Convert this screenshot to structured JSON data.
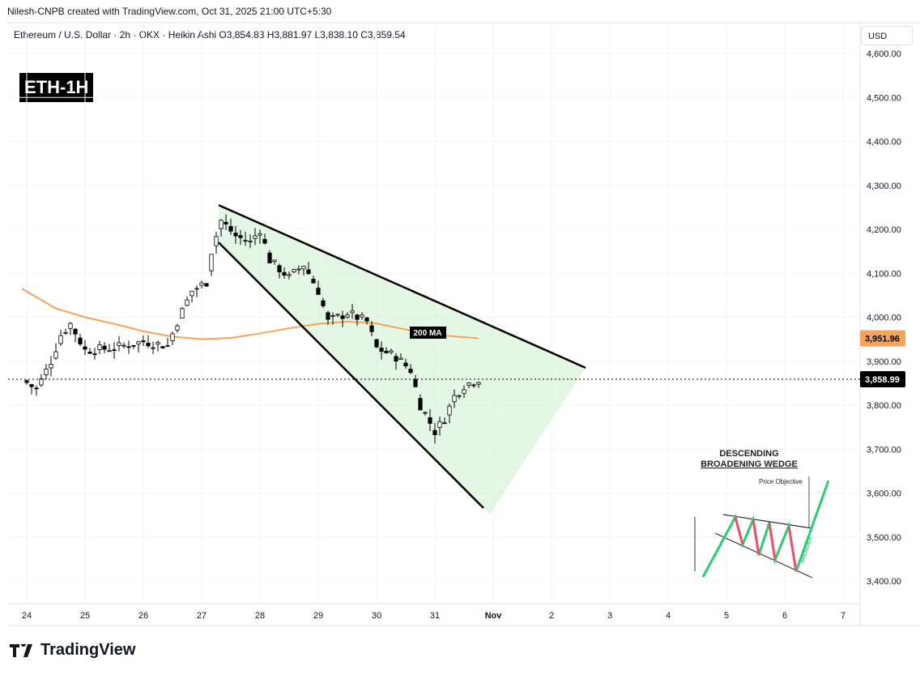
{
  "credit": "Nilesh-CNPB created with TradingView.com, Oct 31, 2025 21:00 UTC+5:30",
  "legend": "Ethereum / U.S. Dollar · 2h · OKX · Heikin Ashi  O3,854.83  H3,881.97  L3,838.10  C3,859.54",
  "badge": "ETH-1H",
  "currency": "USD",
  "logo": "TradingView",
  "colors": {
    "up": "#ffffff",
    "down": "#000000",
    "ma": "#f7a35c",
    "wedge_fill": "#d9f2d9",
    "wedge_line": "#000000",
    "ma_badge": "#f7a35c"
  },
  "chart_data": {
    "type": "candlestick",
    "ylim": [
      3380,
      4640
    ],
    "yticks": [
      3400,
      3500,
      3600,
      3700,
      3800,
      3900,
      4000,
      4100,
      4200,
      4300,
      4400,
      4500,
      4600
    ],
    "ytick_labels": [
      "3,400.00",
      "3,500.00",
      "3,600.00",
      "3,700.00",
      "3,800.00",
      "3,900.00",
      "4,000.00",
      "4,100.00",
      "4,200.00",
      "4,300.00",
      "4,400.00",
      "4,500.00",
      "4,600.00"
    ],
    "xticks": [
      "2025-10-24T00:00",
      "2025-10-25T00:00",
      "2025-10-26T00:00",
      "2025-10-27T00:00",
      "2025-10-28T00:00",
      "2025-10-29T00:00",
      "2025-10-30T00:00",
      "2025-10-31T00:00",
      "2025-11-01T00:00",
      "2025-11-02T00:00",
      "2025-11-03T00:00",
      "2025-11-04T00:00",
      "2025-11-05T00:00",
      "2025-11-06T00:00",
      "2025-11-07T00:00"
    ],
    "xtick_labels": [
      "24",
      "25",
      "26",
      "27",
      "28",
      "29",
      "30",
      "31",
      "Nov",
      "2",
      "3",
      "4",
      "5",
      "6",
      "7"
    ],
    "price_path": [
      [
        "2025-10-23T22:00",
        3860
      ],
      [
        "2025-10-24T04:00",
        3835
      ],
      [
        "2025-10-24T10:00",
        3900
      ],
      [
        "2025-10-24T14:00",
        3960
      ],
      [
        "2025-10-24T18:00",
        3985
      ],
      [
        "2025-10-25T00:00",
        3925
      ],
      [
        "2025-10-25T12:00",
        3930
      ],
      [
        "2025-10-26T00:00",
        3945
      ],
      [
        "2025-10-26T10:00",
        3935
      ],
      [
        "2025-10-26T14:00",
        3990
      ],
      [
        "2025-10-26T20:00",
        4060
      ],
      [
        "2025-10-27T02:00",
        4080
      ],
      [
        "2025-10-27T04:00",
        4150
      ],
      [
        "2025-10-27T08:00",
        4220
      ],
      [
        "2025-10-27T14:00",
        4185
      ],
      [
        "2025-10-27T20:00",
        4170
      ],
      [
        "2025-10-28T00:00",
        4200
      ],
      [
        "2025-10-28T04:00",
        4130
      ],
      [
        "2025-10-28T12:00",
        4090
      ],
      [
        "2025-10-28T18:00",
        4120
      ],
      [
        "2025-10-29T00:00",
        4060
      ],
      [
        "2025-10-29T04:00",
        3990
      ],
      [
        "2025-10-29T12:00",
        4010
      ],
      [
        "2025-10-29T20:00",
        3990
      ],
      [
        "2025-10-30T00:00",
        3930
      ],
      [
        "2025-10-30T08:00",
        3910
      ],
      [
        "2025-10-30T14:00",
        3880
      ],
      [
        "2025-10-30T18:00",
        3800
      ],
      [
        "2025-10-31T00:00",
        3740
      ],
      [
        "2025-10-31T04:00",
        3770
      ],
      [
        "2025-10-31T08:00",
        3820
      ],
      [
        "2025-10-31T12:00",
        3845
      ],
      [
        "2025-10-31T18:00",
        3860
      ]
    ],
    "ma": {
      "label": "200 MA",
      "points": [
        [
          "2025-10-23T22:00",
          4065
        ],
        [
          "2025-10-24T12:00",
          4020
        ],
        [
          "2025-10-25T00:00",
          4000
        ],
        [
          "2025-10-25T12:00",
          3985
        ],
        [
          "2025-10-26T00:00",
          3968
        ],
        [
          "2025-10-26T12:00",
          3956
        ],
        [
          "2025-10-27T00:00",
          3950
        ],
        [
          "2025-10-27T12:00",
          3953
        ],
        [
          "2025-10-28T00:00",
          3963
        ],
        [
          "2025-10-28T12:00",
          3975
        ],
        [
          "2025-10-29T00:00",
          3985
        ],
        [
          "2025-10-29T12:00",
          3990
        ],
        [
          "2025-10-30T00:00",
          3986
        ],
        [
          "2025-10-30T12:00",
          3972
        ],
        [
          "2025-10-31T00:00",
          3960
        ],
        [
          "2025-10-31T18:00",
          3952
        ]
      ]
    },
    "wedge": {
      "upper": [
        [
          "2025-10-27T07:00",
          4255
        ],
        [
          "2025-11-02T14:00",
          3885
        ]
      ],
      "lower": [
        [
          "2025-10-27T07:00",
          4170
        ],
        [
          "2025-10-31T20:00",
          3566
        ]
      ]
    },
    "last_price": {
      "value": 3858.99,
      "label": "3,858.99"
    },
    "ma_price": {
      "value": 3951.96,
      "label": "3,951.96"
    }
  },
  "inset": {
    "title1": "DESCENDING",
    "title2": "BROADENING WEDGE",
    "objective": "Price Objective",
    "breakout": "BREAKOUT"
  }
}
